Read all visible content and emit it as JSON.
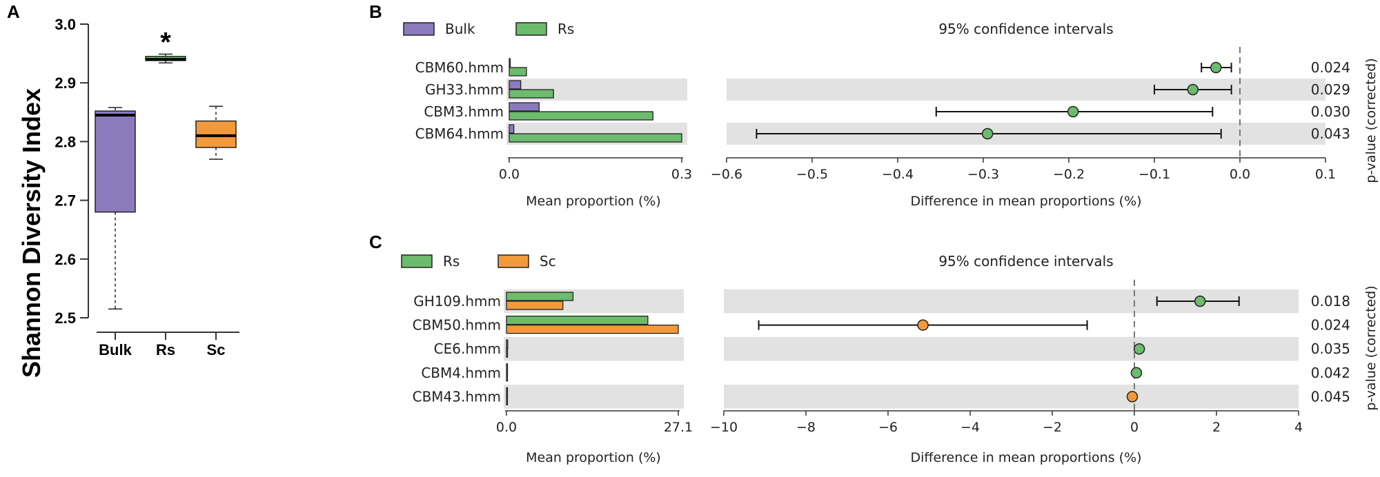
{
  "colors": {
    "bulk": "#8b7bbd",
    "rs": "#6dbb6d",
    "sc": "#f29a3b",
    "band": "#e2e2e2",
    "axis": "#333333",
    "dash": "#777777"
  },
  "panel_a": {
    "label": "A",
    "star": "*"
  },
  "panel_b": {
    "label": "B",
    "legend": [
      "Bulk",
      "Rs"
    ],
    "ci_title": "95% confidence intervals",
    "pvalue_label": "p-value (corrected)"
  },
  "panel_c": {
    "label": "C",
    "legend": [
      "Rs",
      "Sc"
    ],
    "ci_title": "95% confidence intervals",
    "pvalue_label": "p-value (corrected)"
  },
  "chart_data": [
    {
      "id": "A",
      "type": "box",
      "title": "",
      "xlabel": "",
      "ylabel": "Shannon Diversity Index",
      "ylim": [
        2.5,
        3.0
      ],
      "yticks": [
        "2.5",
        "2.6",
        "2.7",
        "2.8",
        "2.9",
        "3.0"
      ],
      "categories": [
        "Bulk",
        "Rs",
        "Sc"
      ],
      "boxes": [
        {
          "name": "Bulk",
          "min": 2.515,
          "q1": 2.68,
          "median": 2.845,
          "q3": 2.852,
          "max": 2.858
        },
        {
          "name": "Rs",
          "min": 2.934,
          "q1": 2.938,
          "median": 2.94,
          "q3": 2.945,
          "max": 2.949
        },
        {
          "name": "Sc",
          "min": 2.77,
          "q1": 2.79,
          "median": 2.81,
          "q3": 2.835,
          "max": 2.86
        }
      ],
      "annotations": [
        {
          "category": "Rs",
          "text": "*"
        }
      ]
    },
    {
      "id": "B",
      "type": "bar",
      "title": "",
      "xlabel": "Mean proportion (%)",
      "xlim": [
        0.0,
        0.3
      ],
      "xticks": [
        "0.0",
        "0.3"
      ],
      "categories": [
        "CBM60.hmm",
        "GH33.hmm",
        "CBM3.hmm",
        "CBM64.hmm"
      ],
      "series": [
        {
          "name": "Bulk",
          "values": [
            0.0,
            0.02,
            0.052,
            0.008
          ]
        },
        {
          "name": "Rs",
          "values": [
            0.03,
            0.077,
            0.25,
            0.3
          ]
        }
      ]
    },
    {
      "id": "B-ci",
      "type": "scatter",
      "title": "95% confidence intervals",
      "xlabel": "Difference in mean proportions (%)",
      "xlim": [
        -0.6,
        0.1
      ],
      "xticks": [
        "−0.6",
        "−0.5",
        "−0.4",
        "−0.3",
        "−0.2",
        "−0.1",
        "0.0",
        "0.1"
      ],
      "categories": [
        "CBM60.hmm",
        "GH33.hmm",
        "CBM3.hmm",
        "CBM64.hmm"
      ],
      "points": [
        {
          "name": "CBM60.hmm",
          "value": -0.028,
          "low": -0.045,
          "high": -0.01,
          "group": "Rs",
          "p": "0.024"
        },
        {
          "name": "GH33.hmm",
          "value": -0.055,
          "low": -0.1,
          "high": -0.01,
          "group": "Rs",
          "p": "0.029"
        },
        {
          "name": "CBM3.hmm",
          "value": -0.195,
          "low": -0.355,
          "high": -0.032,
          "group": "Rs",
          "p": "0.030"
        },
        {
          "name": "CBM64.hmm",
          "value": -0.295,
          "low": -0.565,
          "high": -0.022,
          "group": "Rs",
          "p": "0.043"
        }
      ]
    },
    {
      "id": "C",
      "type": "bar",
      "title": "",
      "xlabel": "Mean proportion (%)",
      "xlim": [
        0.0,
        27.1
      ],
      "xticks": [
        "0.0",
        "27.1"
      ],
      "categories": [
        "GH109.hmm",
        "CBM50.hmm",
        "CE6.hmm",
        "CBM4.hmm",
        "CBM43.hmm"
      ],
      "series": [
        {
          "name": "Rs",
          "values": [
            10.5,
            22.3,
            0.2,
            0.15,
            0.05
          ]
        },
        {
          "name": "Sc",
          "values": [
            8.9,
            27.1,
            0.1,
            0.1,
            0.1
          ]
        }
      ]
    },
    {
      "id": "C-ci",
      "type": "scatter",
      "title": "95% confidence intervals",
      "xlabel": "Difference in mean proportions (%)",
      "xlim": [
        -10,
        4
      ],
      "xticks": [
        "−10",
        "−8",
        "−6",
        "−4",
        "−2",
        "0",
        "2",
        "4"
      ],
      "categories": [
        "GH109.hmm",
        "CBM50.hmm",
        "CE6.hmm",
        "CBM4.hmm",
        "CBM43.hmm"
      ],
      "points": [
        {
          "name": "GH109.hmm",
          "value": 1.6,
          "low": 0.55,
          "high": 2.55,
          "group": "Rs",
          "p": "0.018"
        },
        {
          "name": "CBM50.hmm",
          "value": -5.15,
          "low": -9.15,
          "high": -1.15,
          "group": "Sc",
          "p": "0.024"
        },
        {
          "name": "CE6.hmm",
          "value": 0.12,
          "low": 0.12,
          "high": 0.12,
          "group": "Rs",
          "p": "0.035"
        },
        {
          "name": "CBM4.hmm",
          "value": 0.05,
          "low": 0.05,
          "high": 0.05,
          "group": "Rs",
          "p": "0.042"
        },
        {
          "name": "CBM43.hmm",
          "value": -0.05,
          "low": -0.05,
          "high": -0.05,
          "group": "Sc",
          "p": "0.045"
        }
      ]
    }
  ]
}
